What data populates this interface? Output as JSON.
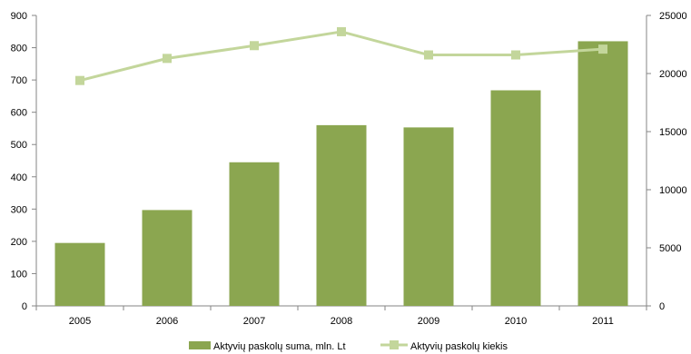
{
  "chart_data": {
    "type": "bar",
    "categories": [
      "2005",
      "2006",
      "2007",
      "2008",
      "2009",
      "2010",
      "2011"
    ],
    "series": [
      {
        "name": "Aktyvių paskolų suma, mln. Lt",
        "type": "bar",
        "axis": "left",
        "color": "#8BA650",
        "values": [
          195,
          297,
          445,
          560,
          553,
          668,
          820
        ]
      },
      {
        "name": "Aktyvių paskolų kiekis",
        "type": "line",
        "axis": "right",
        "color": "#C3D69B",
        "values": [
          19400,
          21300,
          22400,
          23600,
          21600,
          21600,
          22100
        ]
      }
    ],
    "y_left": {
      "min": 0,
      "max": 900,
      "ticks": [
        "0",
        "100",
        "200",
        "300",
        "400",
        "500",
        "600",
        "700",
        "800",
        "900"
      ]
    },
    "y_right": {
      "min": 0,
      "max": 25000,
      "ticks": [
        "0",
        "5000",
        "10000",
        "15000",
        "20000",
        "25000"
      ]
    },
    "grid": false,
    "legend": {
      "position": "bottom"
    }
  }
}
